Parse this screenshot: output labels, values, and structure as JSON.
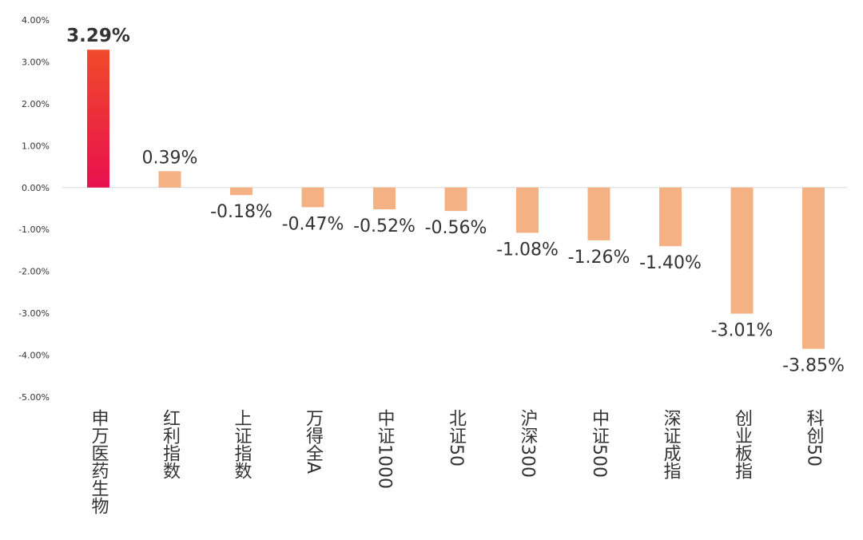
{
  "chart_data": {
    "type": "bar",
    "categories": [
      "申万医药生物",
      "红利指数",
      "上证指数",
      "万得全A",
      "中证1000",
      "北证50",
      "沪深300",
      "中证500",
      "深证成指",
      "创业板指",
      "科创50"
    ],
    "values": [
      3.29,
      0.39,
      -0.18,
      -0.47,
      -0.52,
      -0.56,
      -1.08,
      -1.26,
      -1.4,
      -3.01,
      -3.85
    ],
    "data_labels": [
      "3.29%",
      "0.39%",
      "-0.18%",
      "-0.47%",
      "-0.52%",
      "-0.56%",
      "-1.08%",
      "-1.26%",
      "-1.40%",
      "-3.01%",
      "-3.85%"
    ],
    "y_ticks": [
      4,
      3,
      2,
      1,
      0,
      -1,
      -2,
      -3,
      -4,
      -5
    ],
    "y_tick_labels": [
      "4.00%",
      "3.00%",
      "2.00%",
      "1.00%",
      "0.00%",
      "-1.00%",
      "-2.00%",
      "-3.00%",
      "-4.00%",
      "-5.00%"
    ],
    "ylim": [
      -5,
      4
    ],
    "grid": false,
    "title": "",
    "xlabel": "",
    "ylabel": "",
    "highlight_index": 0,
    "colors": {
      "highlight_top": "#f04a2a",
      "highlight_bottom": "#e8104e",
      "bar": "#f4b183",
      "axis": "#d9d9d9",
      "text": "#333333"
    }
  }
}
